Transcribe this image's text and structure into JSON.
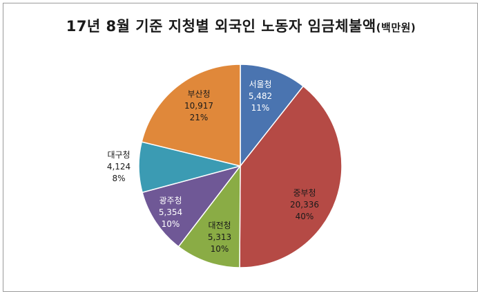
{
  "chart_data": {
    "type": "pie",
    "title": "17년 8월 기준 지청별 외국인 노동자 임금체불액",
    "title_unit": "(백만원)",
    "start_angle_deg": 0,
    "direction": "clockwise",
    "slices": [
      {
        "name": "서울청",
        "value": 5482,
        "value_label": "5,482",
        "percent_label": "11%",
        "color": "#4a74b0",
        "label_color": "#ffffff"
      },
      {
        "name": "중부청",
        "value": 20336,
        "value_label": "20,336",
        "percent_label": "40%",
        "color": "#b54a45",
        "label_color": "#1a1a1a"
      },
      {
        "name": "대전청",
        "value": 5313,
        "value_label": "5,313",
        "percent_label": "10%",
        "color": "#8aac45",
        "label_color": "#1a1a1a"
      },
      {
        "name": "광주청",
        "value": 5354,
        "value_label": "5,354",
        "percent_label": "10%",
        "color": "#6f5896",
        "label_color": "#ffffff"
      },
      {
        "name": "대구청",
        "value": 4124,
        "value_label": "4,124",
        "percent_label": "8%",
        "color": "#3b9bb3",
        "label_color": "#1a1a1a"
      },
      {
        "name": "부산청",
        "value": 10917,
        "value_label": "10,917",
        "percent_label": "21%",
        "color": "#e0883a",
        "label_color": "#1a1a1a"
      }
    ],
    "legend": "none"
  }
}
